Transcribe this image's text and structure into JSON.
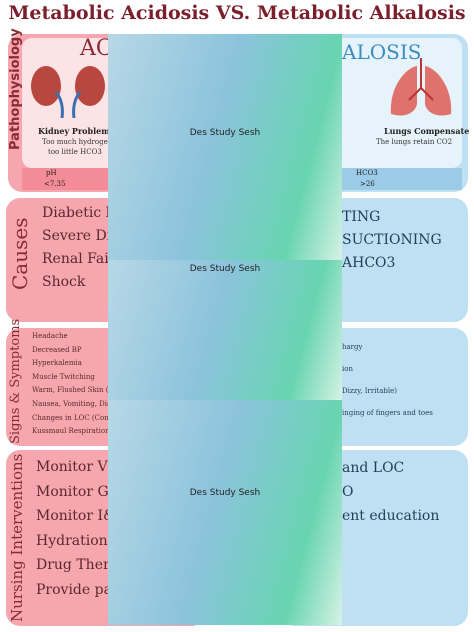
{
  "header": {
    "title": "Metabolic Acidosis VS. Metabolic Alkalosis"
  },
  "pathophysiology": {
    "label": "Pathophysiology",
    "left_heading": "ACI",
    "right_heading": "ALOSIS",
    "left_caption": "Kidney Problem",
    "left_detail": [
      "Too much hydrogen,",
      "too little HCO3"
    ],
    "left_lab": "pH",
    "left_lab_value": "<7.35",
    "right_caption": "Lungs Compensate",
    "right_detail": "The lungs retain CO2",
    "right_lab": "HCO3",
    "right_lab_value": ">26"
  },
  "causes": {
    "label": "Causes",
    "left": [
      "Diabetic ket",
      "Severe Diarr",
      "Renal Failu",
      "Shock"
    ],
    "right": [
      "TING",
      "SUCTIONING",
      "AHCO3"
    ]
  },
  "signs": {
    "label": "Signs & Symptoms",
    "left": [
      "Headache",
      "Decreased BP",
      "Hyperkalemia",
      "Muscle Twitching",
      "Warm, Flushed Skin (Vaso",
      "Nausea, Vomiting, Diarrh",
      "Changes in LOC (Confusion",
      "Kussmaul Respirations (Co"
    ],
    "right": [
      "hargy",
      "ion",
      "Dizzy, Irritable)",
      "inging of fingers and toes"
    ]
  },
  "nursing": {
    "label": "Nursing Interventions",
    "left": [
      "Monitor VS &",
      "Monitor GI &",
      "Monitor I&O",
      "Hydration",
      "Drug Therapy",
      "Provide patie"
    ],
    "right": [
      "and LOC",
      "O",
      "ent education"
    ]
  },
  "overlay": {
    "text": "Des Study Sesh"
  }
}
